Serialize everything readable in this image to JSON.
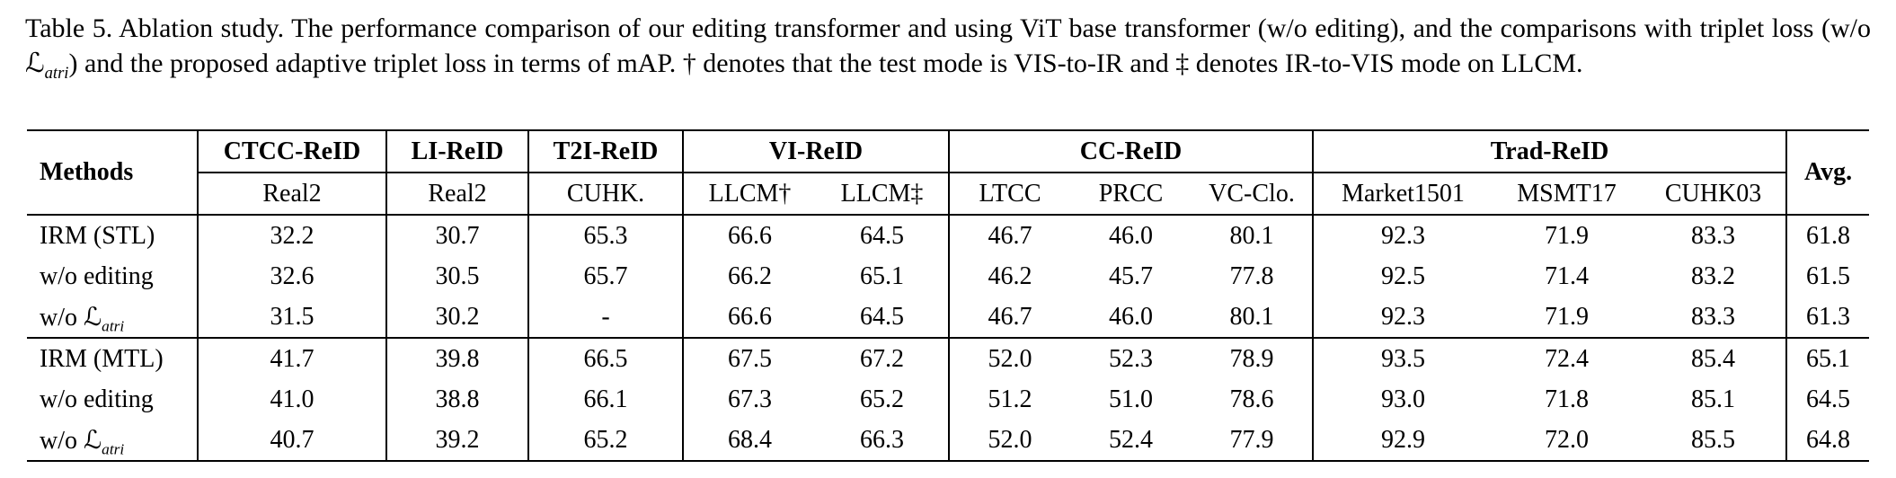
{
  "caption": {
    "label": "Table 5.",
    "part1": " Ablation study. The performance comparison of our editing transformer and using ViT base transformer (w/o editing), and the comparisons with triplet loss (w/o ",
    "math_symbol": "ℒ",
    "math_subscript": "atri",
    "part2": ") and the proposed adaptive triplet loss in terms of mAP. † denotes that the test mode is VIS-to-IR and ‡ denotes IR-to-VIS mode on LLCM."
  },
  "table": {
    "header": {
      "methods_label": "Methods",
      "avg_label": "Avg.",
      "groups": [
        {
          "label": "CTCC-ReID",
          "subcols": [
            "Real2"
          ]
        },
        {
          "label": "LI-ReID",
          "subcols": [
            "Real2"
          ]
        },
        {
          "label": "T2I-ReID",
          "subcols": [
            "CUHK."
          ]
        },
        {
          "label": "VI-ReID",
          "subcols": [
            "LLCM†",
            "LLCM‡"
          ]
        },
        {
          "label": "CC-ReID",
          "subcols": [
            "LTCC",
            "PRCC",
            "VC-Clo."
          ]
        },
        {
          "label": "Trad-ReID",
          "subcols": [
            "Market1501",
            "MSMT17",
            "CUHK03"
          ]
        }
      ]
    },
    "rows": [
      {
        "section_start": false,
        "label_segments": [
          {
            "t": "IRM (STL)",
            "style": "plain"
          }
        ],
        "values": [
          "32.2",
          "30.7",
          "65.3",
          "66.6",
          "64.5",
          "46.7",
          "46.0",
          "80.1",
          "92.3",
          "71.9",
          "83.3",
          "61.8"
        ]
      },
      {
        "section_start": false,
        "label_segments": [
          {
            "t": "w/o editing",
            "style": "plain"
          }
        ],
        "values": [
          "32.6",
          "30.5",
          "65.7",
          "66.2",
          "65.1",
          "46.2",
          "45.7",
          "77.8",
          "92.5",
          "71.4",
          "83.2",
          "61.5"
        ]
      },
      {
        "section_start": false,
        "label_segments": [
          {
            "t": "w/o ",
            "style": "plain"
          },
          {
            "t": "ℒ",
            "style": "math"
          },
          {
            "t": "atri",
            "style": "sub"
          }
        ],
        "values": [
          "31.5",
          "30.2",
          "-",
          "66.6",
          "64.5",
          "46.7",
          "46.0",
          "80.1",
          "92.3",
          "71.9",
          "83.3",
          "61.3"
        ]
      },
      {
        "section_start": true,
        "label_segments": [
          {
            "t": "IRM (MTL)",
            "style": "plain"
          }
        ],
        "values": [
          "41.7",
          "39.8",
          "66.5",
          "67.5",
          "67.2",
          "52.0",
          "52.3",
          "78.9",
          "93.5",
          "72.4",
          "85.4",
          "65.1"
        ]
      },
      {
        "section_start": false,
        "label_segments": [
          {
            "t": "w/o editing",
            "style": "plain"
          }
        ],
        "values": [
          "41.0",
          "38.8",
          "66.1",
          "67.3",
          "65.2",
          "51.2",
          "51.0",
          "78.6",
          "93.0",
          "71.8",
          "85.1",
          "64.5"
        ]
      },
      {
        "section_start": false,
        "label_segments": [
          {
            "t": "w/o ",
            "style": "plain"
          },
          {
            "t": "ℒ",
            "style": "math"
          },
          {
            "t": "atri",
            "style": "sub"
          }
        ],
        "values": [
          "40.7",
          "39.2",
          "65.2",
          "68.4",
          "66.3",
          "52.0",
          "52.4",
          "77.9",
          "92.9",
          "72.0",
          "85.5",
          "64.8"
        ]
      }
    ]
  }
}
